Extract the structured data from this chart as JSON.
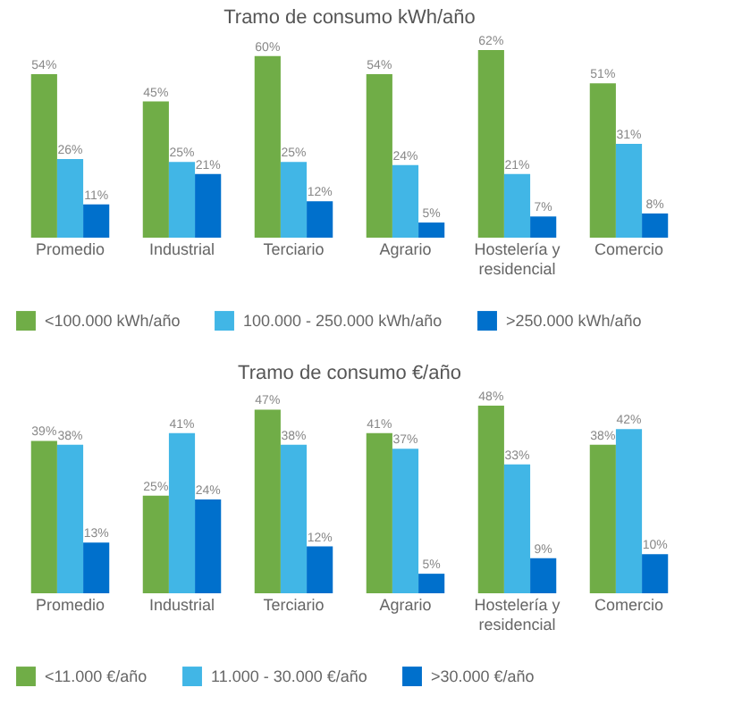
{
  "chart_data": [
    {
      "type": "bar",
      "title": "Tramo de consumo kWh/año",
      "categories": [
        "Promedio",
        "Industrial",
        "Terciario",
        "Agrario",
        "Hostelería y residencial",
        "Comercio"
      ],
      "legend": "bottom",
      "grid": false,
      "tick_labels": "x",
      "series": [
        {
          "name": "<100.000 kWh/año",
          "color": "#70ad47",
          "values": [
            54,
            45,
            60,
            54,
            62,
            51
          ],
          "value_labels": [
            "54%",
            "45%",
            "60%",
            "54%",
            "62%",
            "51%"
          ]
        },
        {
          "name": "100.000 - 250.000 kWh/año",
          "color": "#41b6e6",
          "values": [
            26,
            25,
            25,
            24,
            21,
            31
          ],
          "value_labels": [
            "26%",
            "25%",
            "25%",
            "24%",
            "21%",
            "31%"
          ]
        },
        {
          "name": ">250.000 kWh/año",
          "color": "#0070cc",
          "values": [
            11,
            21,
            12,
            5,
            7,
            8
          ],
          "value_labels": [
            "11%",
            "21%",
            "12%",
            "5%",
            "7%",
            "8%"
          ]
        }
      ]
    },
    {
      "type": "bar",
      "title": "Tramo de consumo €/año",
      "categories": [
        "Promedio",
        "Industrial",
        "Terciario",
        "Agrario",
        "Hostelería y residencial",
        "Comercio"
      ],
      "legend": "bottom",
      "grid": false,
      "tick_labels": "x",
      "series": [
        {
          "name": "<11.000 €/año",
          "color": "#70ad47",
          "values": [
            39,
            25,
            47,
            41,
            48,
            38
          ],
          "value_labels": [
            "39%",
            "25%",
            "47%",
            "41%",
            "48%",
            "38%"
          ]
        },
        {
          "name": "11.000 - 30.000 €/año",
          "color": "#41b6e6",
          "values": [
            38,
            41,
            38,
            37,
            33,
            42
          ],
          "value_labels": [
            "38%",
            "41%",
            "38%",
            "37%",
            "33%",
            "42%"
          ]
        },
        {
          "name": ">30.000 €/año",
          "color": "#0070cc",
          "values": [
            13,
            24,
            12,
            5,
            9,
            10
          ],
          "value_labels": [
            "13%",
            "24%",
            "12%",
            "5%",
            "9%",
            "10%"
          ]
        }
      ]
    }
  ]
}
